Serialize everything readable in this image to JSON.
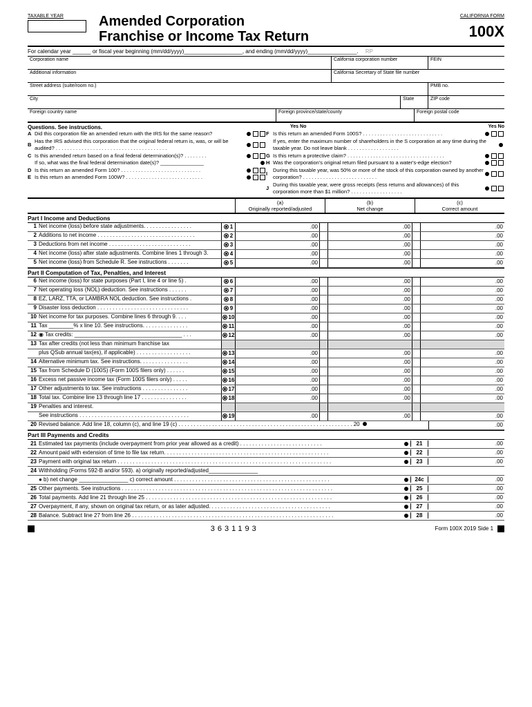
{
  "header": {
    "taxable_year_label": "TAXABLE YEAR",
    "title1": "Amended Corporation",
    "title2": "Franchise or Income Tax Return",
    "california_form_label": "CALIFORNIA FORM",
    "form_number": "100X"
  },
  "calendar_line": {
    "prefix": "For calendar year ______ or fiscal year beginning (mm/dd/yyyy)___________________, and ending (mm/dd/yyyy)________________.",
    "rp": "RP"
  },
  "id_labels": {
    "corp_name": "Corporation name",
    "ca_corp_num": "California corporation number",
    "fein": "FEIN",
    "addl_info": "Additional information",
    "sos_file": "California Secretary of State file number",
    "street": "Street address (suite/room no.)",
    "pmb": "PMB no.",
    "city": "City",
    "state": "State",
    "zip": "ZIP code",
    "foreign_country": "Foreign country name",
    "foreign_province": "Foreign province/state/county",
    "foreign_postal": "Foreign postal code"
  },
  "questions": {
    "header": "Questions. See instructions.",
    "yes_no": "Yes No",
    "left": [
      {
        "l": "A",
        "t": "Did this corporation file an amended return with the IRS for the same reason?"
      },
      {
        "l": "B",
        "t": "Has the IRS advised this corporation that the original federal return is, was, or will be audited? . . . . . . . . . . . . . . . . . . . . . . . . . . . . . . . . . . . . . . ."
      },
      {
        "l": "C",
        "t": "Is this amended return based on a final federal determination(s)? . . . . . . . ."
      },
      {
        "l": "",
        "t": "If so, what was the final federal determination date(s)? _______________"
      },
      {
        "l": "D",
        "t": "Is this return an amended Form 100? . . . . . . . . . . . . . . . . . . . . . . . . . . . ."
      },
      {
        "l": "E",
        "t": "Is this return an amended Form 100W? . . . . . . . . . . . . . . . . . . . . . . . . . . ."
      }
    ],
    "right": [
      {
        "l": "F",
        "t": "Is this return an amended Form 100S? . . . . . . . . . . . . . . . . . . . . . . . . . . . ."
      },
      {
        "l": "",
        "t": "If yes, enter the maximum number of shareholders in the S corporation at any time during the taxable year. Do not leave blank . . . . . . . . . . . . . . . . . ."
      },
      {
        "l": "G",
        "t": "Is this return a protective claim? . . . . . . . . . . . . . . . . . . . . . . . . . . . . . . . . . ."
      },
      {
        "l": "H",
        "t": "Was the corporation's original return filed pursuant to a water's-edge election?"
      },
      {
        "l": "I",
        "t": "During this taxable year, was 50% or more of the stock of this corporation owned by another corporation? . . . . . . . . . . . . . . . . . . . . . . . . . ."
      },
      {
        "l": "J",
        "t": "During this taxable year, were gross receipts (less returns and allowances) of this corporation more than $1 million? . . . . . . . . . . . . . . . . . ."
      }
    ]
  },
  "col_headers": {
    "a": "(a)",
    "a2": "Originally reported/adjusted",
    "b": "(b)",
    "b2": "Net change",
    "c": "(c)",
    "c2": "Correct amount"
  },
  "part1": {
    "title": "Part I    Income and Deductions",
    "lines": [
      {
        "n": "1",
        "t": "Net income (loss) before state adjustments. . . . . . . . . . . . . . . .",
        "m": "1"
      },
      {
        "n": "2",
        "t": "Additions to net income . . . . . . . . . . . . . . . . . . . . . . . . . . . . . . . .",
        "m": "2"
      },
      {
        "n": "3",
        "t": "Deductions from net income . . . . . . . . . . . . . . . . . . . . . . . . . . .",
        "m": "3"
      },
      {
        "n": "4",
        "t": "Net income (loss) after state adjustments. Combine lines 1 through 3.",
        "m": "4"
      },
      {
        "n": "5",
        "t": "Net income (loss) from Schedule R. See instructions . . . . . . .",
        "m": "5"
      }
    ]
  },
  "part2": {
    "title": "Part II   Computation of Tax, Penalties, and Interest",
    "lines": [
      {
        "n": "6",
        "t": "Net income (loss) for state purposes (Part I, line 4 or line 5) .",
        "m": "6"
      },
      {
        "n": "7",
        "t": "Net operating loss (NOL) deduction. See instructions . . . . . .",
        "m": "7"
      },
      {
        "n": "8",
        "t": "EZ, LARZ, TTA, or LAMBRA NOL deduction. See instructions .",
        "m": "8"
      },
      {
        "n": "9",
        "t": "Disaster loss deduction . . . . . . . . . . . . . . . . . . . . . . . . . . . . . .",
        "m": "9"
      },
      {
        "n": "10",
        "t": "Net income for tax purposes. Combine lines 6 through 9. . . .",
        "m": "10"
      },
      {
        "n": "11",
        "t": "Tax ________% x line 10. See instructions. . . . . . . . . . . . . . .",
        "m": "11"
      },
      {
        "n": "12",
        "t": "◉ Tax credits: ___________________________________ . . .",
        "m": "12"
      },
      {
        "n": "13",
        "t": "Tax after credits (not less than minimum franchise tax",
        "m": ""
      },
      {
        "n": "",
        "t": "plus QSub annual tax(es), if applicable) . . . . . . . . . . . . . . . . . .",
        "m": "13"
      },
      {
        "n": "14",
        "t": "Alternative minimum tax. See instructions. . . . . . . . . . . . . . . .",
        "m": "14"
      },
      {
        "n": "15",
        "t": "Tax from Schedule D (100S) (Form 100S filers only) . . . . . .",
        "m": "15"
      },
      {
        "n": "16",
        "t": "Excess net passive income tax (Form 100S filers only) . . . . .",
        "m": "16"
      },
      {
        "n": "17",
        "t": "Other adjustments to tax. See instructions . . . . . . . . . . . . . . .",
        "m": "17"
      },
      {
        "n": "18",
        "t": "Total tax. Combine line 13 through line 17 . . . . . . . . . . . . . . .",
        "m": "18"
      },
      {
        "n": "19",
        "t": "Penalties and interest.",
        "m": ""
      },
      {
        "n": "",
        "t": "See instructions . . . . . . . . . . . . . . . . . . . . . . . . . . . . . . . . . . . .",
        "m": "19"
      },
      {
        "n": "20",
        "t": "Revised balance. Add line 18, column (c), and line 19 (c) . . . . . . . . . . . . . . . . . . . . . . . . . . . . . . . . . . . . . . . . . . . . . . . . . . . . . . . . . 20",
        "m": ""
      }
    ]
  },
  "part3": {
    "title": "Part III  Payments and Credits",
    "lines": [
      {
        "n": "21",
        "t": "Estimated tax payments (include overpayment from prior year allowed as a credit) . . . . . . . . . . . . . . . . . . . . . . . . . . .",
        "b": "21"
      },
      {
        "n": "22",
        "t": "Amount paid with extension of time to file tax return. . . . . . . . . . . . . . . . . . . . . . . . . . . . . . . . . . . . . . . . . . . . . . . . . . . . . .",
        "b": "22"
      },
      {
        "n": "23",
        "t": "Payment with original tax return . . . . . . . . . . . . . . . . . . . . . . . . . . . . . . . . . . . . . . . . . . . . . . . . . . . . . . . . . . . . . . . . . . . . . .",
        "b": "23"
      },
      {
        "n": "24",
        "t": "Withholding (Forms 592-B and/or 593).  a) originally reported/adjusted________________",
        "b": ""
      },
      {
        "n": "",
        "t": "● b) net change ________________    c) correct amount . . . . . . . . . . . . . . . . . . . . . . . . . . . . . . . . . . . . . . . . . . . . . . . . . . .",
        "b": "24c"
      },
      {
        "n": "25",
        "t": "Other payments. See instructions . . . . . . . . . . . . . . . . . . . . . . . . . . . . . . . . . . . . . . . . . . . . . . . . . . . . . . . . . . . . . . . . . . . . .",
        "b": "25"
      },
      {
        "n": "26",
        "t": "Total payments. Add line 21 through line 25 . . . . . . . . . . . . . . . . . . . . . . . . . . . . . . . . . . . . . . . . . . . . . . . . . . . . . . . . . . . . .",
        "b": "26"
      },
      {
        "n": "27",
        "t": "Overpayment, if any, shown on original tax return, or as later adjusted. . . . . . . . . . . . . . . . . . . . . . . . . . . . . . . . . . . . . . . .",
        "b": "27"
      },
      {
        "n": "28",
        "t": "Balance. Subtract line 27 from line 26 . . . . . . . . . . . . . . . . . . . . . . . . . . . . . . . . . . . . . . . . . . . . . . . . . . . . . . . . . . . . . . . . . .",
        "b": "28"
      }
    ]
  },
  "footer": {
    "code": "3631193",
    "right": "Form 100X 2019  Side 1"
  },
  "amt_suffix": ".00"
}
